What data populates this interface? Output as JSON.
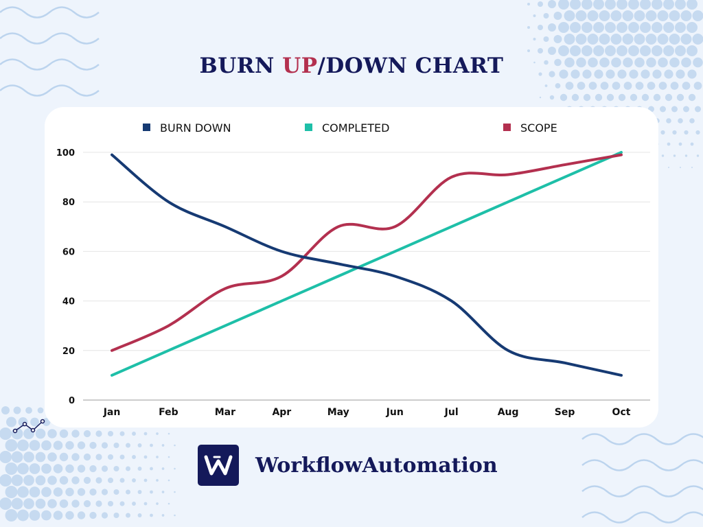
{
  "title": {
    "part1": "BURN ",
    "highlight": "UP",
    "part2": "/DOWN CHART"
  },
  "brand": {
    "name": "WorkflowAutomation"
  },
  "colors": {
    "navy": "#14195a",
    "accent": "#b3304f",
    "teal": "#1ebfa8",
    "burn": "#163a73"
  },
  "chart_data": {
    "type": "line",
    "title": "BURN UP/DOWN CHART",
    "xlabel": "",
    "ylabel": "",
    "categories": [
      "Jan",
      "Feb",
      "Mar",
      "Apr",
      "May",
      "Jun",
      "Jul",
      "Aug",
      "Sep",
      "Oct"
    ],
    "ylim": [
      0,
      100
    ],
    "yticks": [
      0,
      20,
      40,
      60,
      80,
      100
    ],
    "grid": true,
    "legend": "top",
    "series": [
      {
        "name": "BURN DOWN",
        "color": "#163a73",
        "values": [
          99,
          80,
          70,
          60,
          55,
          50,
          40,
          20,
          15,
          10
        ]
      },
      {
        "name": "COMPLETED",
        "color": "#1ebfa8",
        "values": [
          10,
          20,
          30,
          40,
          50,
          60,
          70,
          80,
          90,
          100
        ]
      },
      {
        "name": "SCOPE",
        "color": "#b3304f",
        "values": [
          20,
          30,
          45,
          50,
          70,
          70,
          90,
          91,
          95,
          99
        ]
      }
    ]
  }
}
